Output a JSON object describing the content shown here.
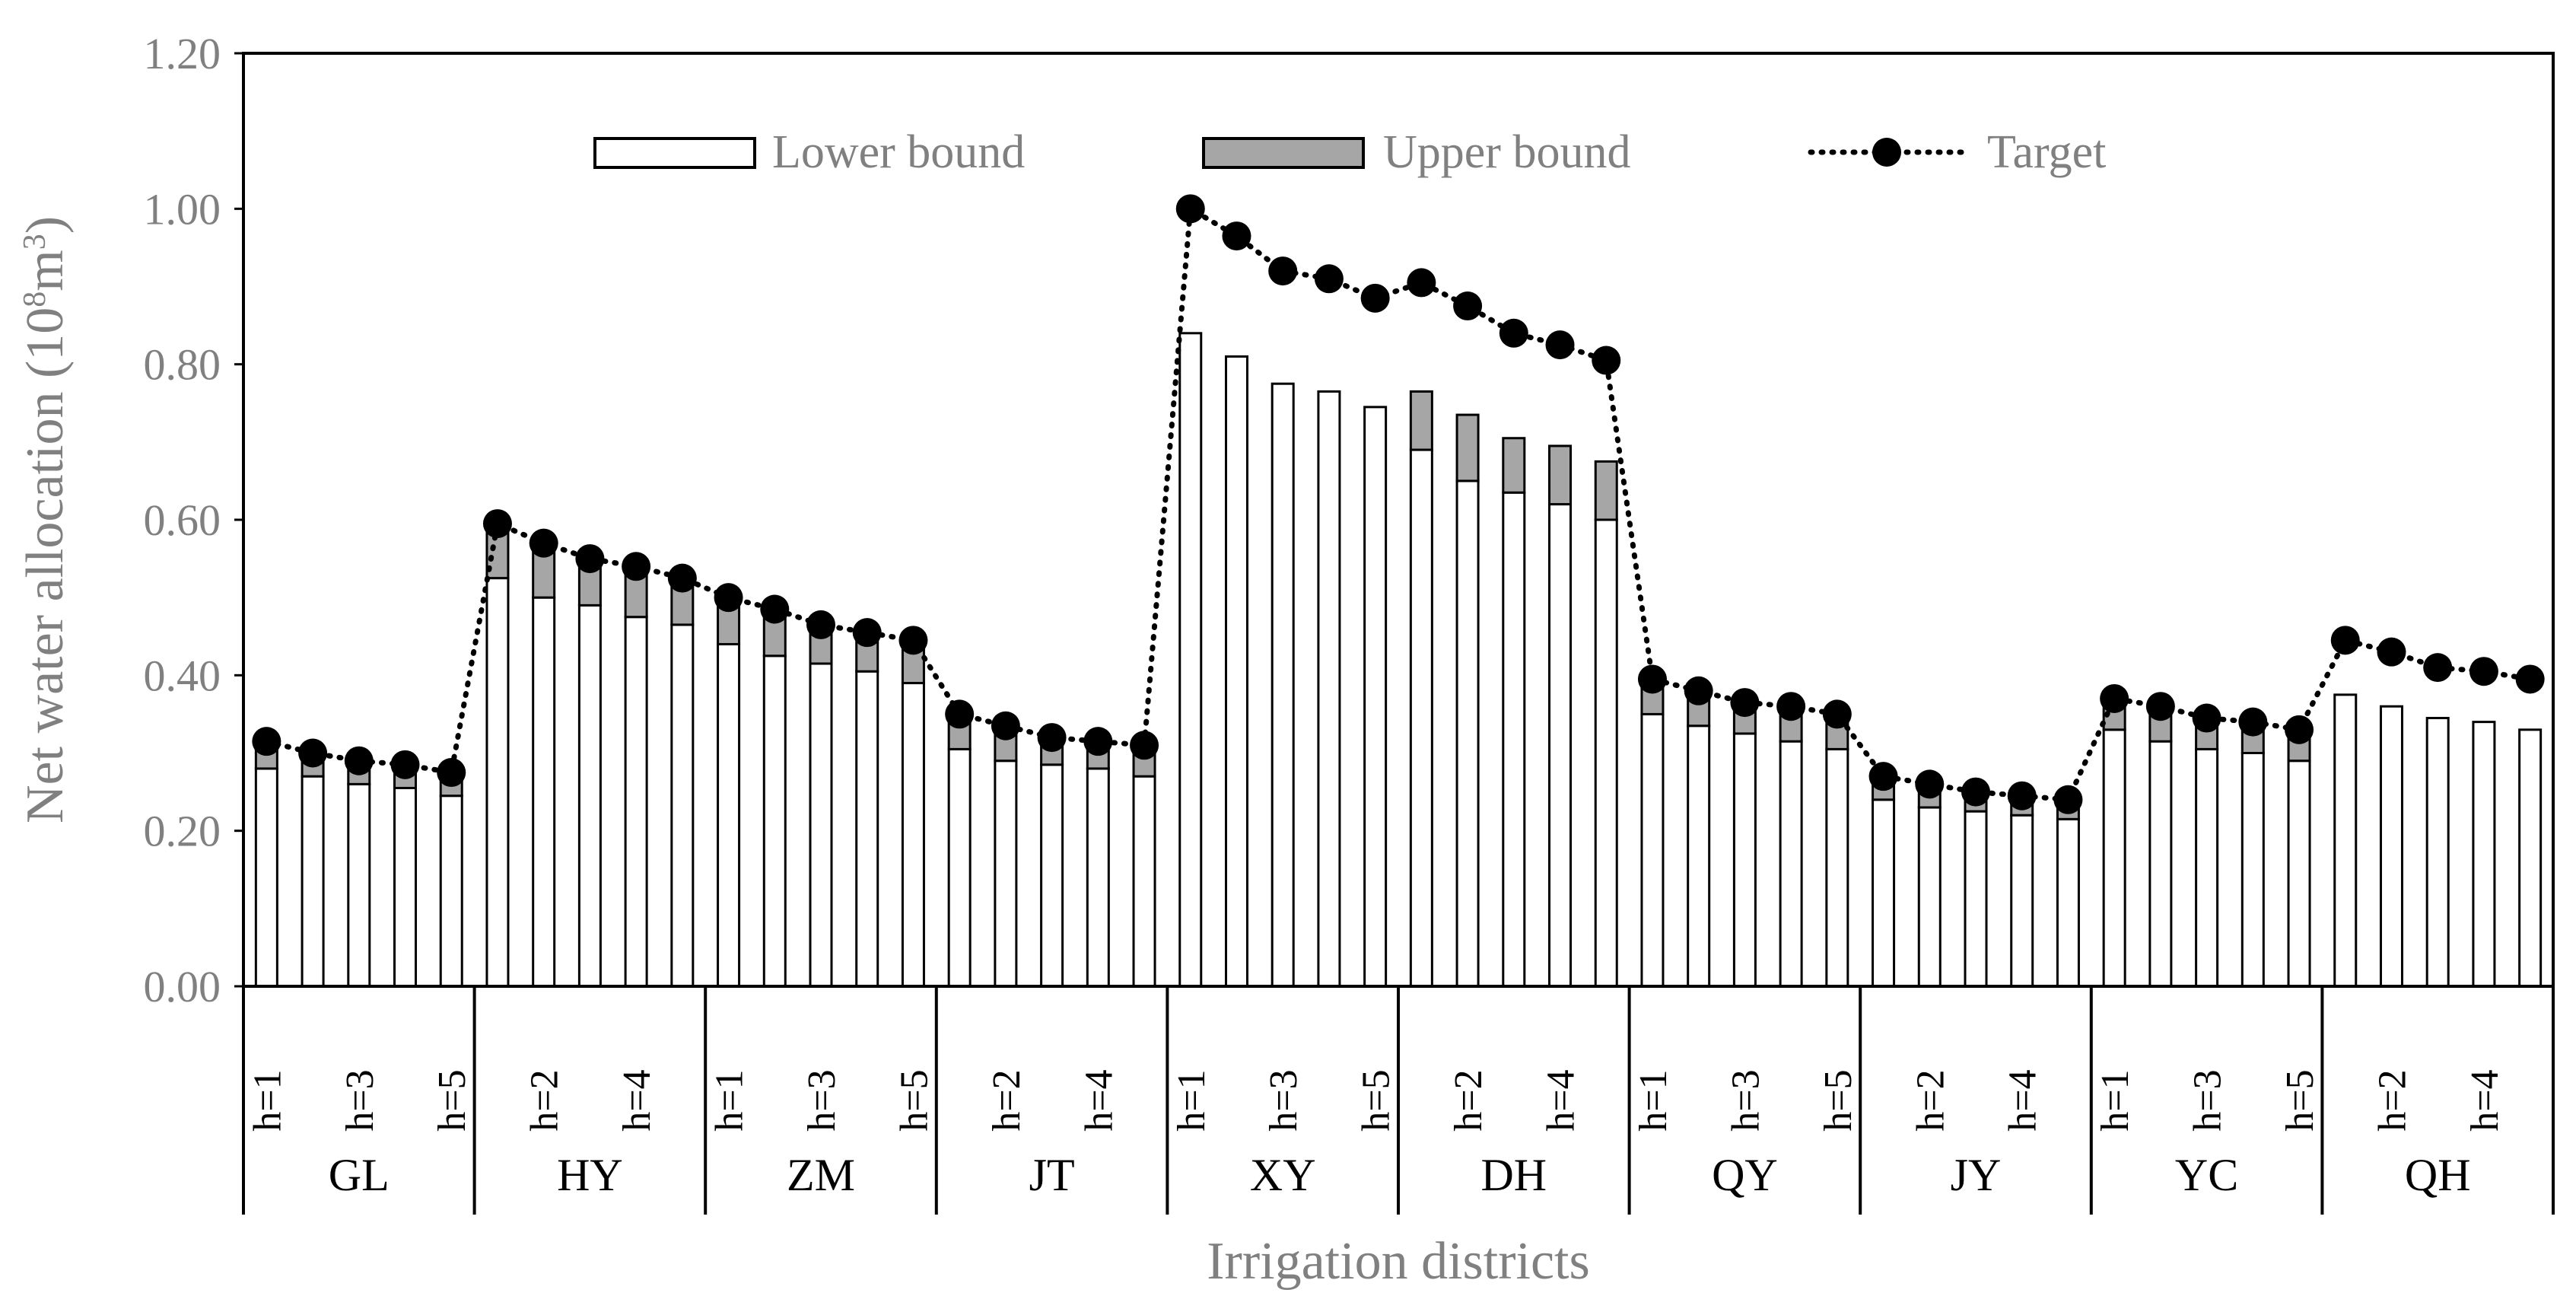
{
  "chart_data": {
    "type": "bar",
    "xlabel": "Irrigation districts",
    "ylabel_main": "Net water allocation (10",
    "ylabel_sup": "8",
    "ylabel_mid": "m",
    "ylabel_sup2": "3",
    "ylabel_end": ")",
    "ylim": [
      0,
      1.2
    ],
    "yticks": [
      "0.00",
      "0.20",
      "0.40",
      "0.60",
      "0.80",
      "1.00",
      "1.20"
    ],
    "grid": false,
    "legend_position": "top",
    "legend": {
      "lower": "Lower bound",
      "upper": "Upper bound",
      "target": "Target"
    },
    "groups": [
      {
        "name": "GL",
        "ticks": [
          "h=1",
          "",
          "h=3",
          "",
          "h=5"
        ],
        "lower": [
          0.28,
          0.27,
          0.26,
          0.255,
          0.245
        ],
        "upper": [
          0.31,
          0.3,
          0.285,
          0.28,
          0.27
        ],
        "target": [
          0.315,
          0.3,
          0.29,
          0.285,
          0.275
        ]
      },
      {
        "name": "HY",
        "ticks": [
          "",
          "h=2",
          "",
          "h=4",
          ""
        ],
        "lower": [
          0.525,
          0.5,
          0.49,
          0.475,
          0.465
        ],
        "upper": [
          0.59,
          0.565,
          0.54,
          0.53,
          0.52
        ],
        "target": [
          0.595,
          0.57,
          0.55,
          0.54,
          0.525
        ]
      },
      {
        "name": "ZM",
        "ticks": [
          "h=1",
          "",
          "h=3",
          "",
          "h=5"
        ],
        "lower": [
          0.44,
          0.425,
          0.415,
          0.405,
          0.39
        ],
        "upper": [
          0.5,
          0.48,
          0.46,
          0.455,
          0.44
        ],
        "target": [
          0.5,
          0.485,
          0.465,
          0.455,
          0.445
        ]
      },
      {
        "name": "JT",
        "ticks": [
          "",
          "h=2",
          "",
          "h=4",
          ""
        ],
        "lower": [
          0.305,
          0.29,
          0.285,
          0.28,
          0.27
        ],
        "upper": [
          0.345,
          0.33,
          0.315,
          0.31,
          0.305
        ],
        "target": [
          0.35,
          0.335,
          0.32,
          0.315,
          0.31
        ]
      },
      {
        "name": "XY",
        "ticks": [
          "h=1",
          "",
          "h=3",
          "",
          "h=5"
        ],
        "lower": [
          0.84,
          0.81,
          0.775,
          0.765,
          0.745
        ],
        "upper": [
          0.84,
          0.81,
          0.775,
          0.765,
          0.745
        ],
        "target": [
          1.0,
          0.965,
          0.92,
          0.91,
          0.885
        ]
      },
      {
        "name": "DH",
        "ticks": [
          "",
          "h=2",
          "",
          "h=4",
          ""
        ],
        "lower": [
          0.69,
          0.65,
          0.635,
          0.62,
          0.6
        ],
        "upper": [
          0.765,
          0.735,
          0.705,
          0.695,
          0.675
        ],
        "target": [
          0.905,
          0.875,
          0.84,
          0.825,
          0.805
        ]
      },
      {
        "name": "QY",
        "ticks": [
          "h=1",
          "",
          "h=3",
          "",
          "h=5"
        ],
        "lower": [
          0.35,
          0.335,
          0.325,
          0.315,
          0.305
        ],
        "upper": [
          0.39,
          0.375,
          0.36,
          0.355,
          0.345
        ],
        "target": [
          0.395,
          0.38,
          0.365,
          0.36,
          0.35
        ]
      },
      {
        "name": "JY",
        "ticks": [
          "",
          "h=2",
          "",
          "h=4",
          ""
        ],
        "lower": [
          0.24,
          0.23,
          0.225,
          0.22,
          0.215
        ],
        "upper": [
          0.265,
          0.255,
          0.245,
          0.24,
          0.235
        ],
        "target": [
          0.27,
          0.26,
          0.25,
          0.245,
          0.24
        ]
      },
      {
        "name": "YC",
        "ticks": [
          "h=1",
          "",
          "h=3",
          "",
          "h=5"
        ],
        "lower": [
          0.33,
          0.315,
          0.305,
          0.3,
          0.29
        ],
        "upper": [
          0.37,
          0.355,
          0.34,
          0.335,
          0.325
        ],
        "target": [
          0.37,
          0.36,
          0.345,
          0.34,
          0.33
        ]
      },
      {
        "name": "QH",
        "ticks": [
          "",
          "h=2",
          "",
          "h=4",
          ""
        ],
        "lower": [
          0.375,
          0.36,
          0.345,
          0.34,
          0.33
        ],
        "upper": [
          0.375,
          0.36,
          0.345,
          0.34,
          0.33
        ],
        "target": [
          0.445,
          0.43,
          0.41,
          0.405,
          0.395
        ]
      }
    ]
  }
}
